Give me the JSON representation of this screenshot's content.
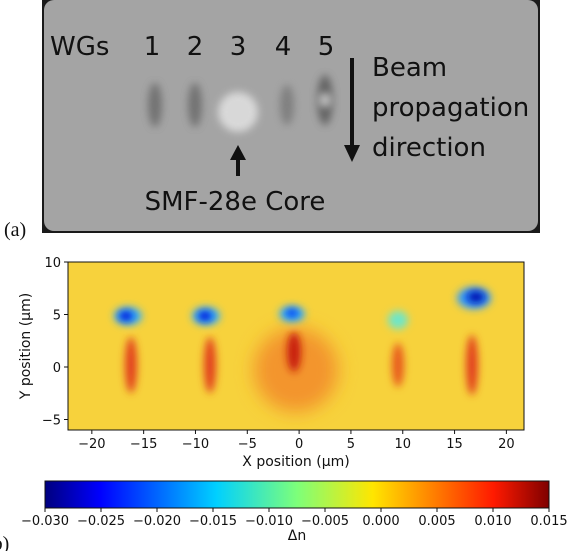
{
  "panel_a": {
    "label": "(a)",
    "wgs": "WGs",
    "wg_numbers": [
      "1",
      "2",
      "3",
      "4",
      "5"
    ],
    "arrow_text": [
      "Beam",
      "propagation",
      "direction"
    ],
    "core_label": "SMF-28e Core"
  },
  "panel_b_label": "(b)",
  "chart_data": {
    "type": "heatmap",
    "xlabel": "X position  (μm)",
    "ylabel": "Y position (μm)",
    "xlim": [
      -22.3,
      21.7
    ],
    "ylim": [
      -6,
      10
    ],
    "xticks": [
      {
        "value": -20,
        "label": "−20"
      },
      {
        "value": -15,
        "label": "−15"
      },
      {
        "value": -10,
        "label": "−10"
      },
      {
        "value": -5,
        "label": "−5"
      },
      0,
      5,
      10,
      15,
      20
    ],
    "yticks": [
      {
        "value": -5,
        "label": "−5"
      },
      0,
      5,
      10
    ],
    "colorbar": {
      "label": "Δn",
      "colormap": "jet",
      "lim": [
        -0.03,
        0.015
      ],
      "ticks": [
        {
          "value": -0.03,
          "label": "−0.030"
        },
        {
          "value": -0.025,
          "label": "−0.025"
        },
        {
          "value": -0.02,
          "label": "−0.020"
        },
        {
          "value": -0.015,
          "label": "−0.015"
        },
        {
          "value": -0.01,
          "label": "−0.010"
        },
        {
          "value": -0.005,
          "label": "−0.005"
        },
        {
          "value": 0,
          "label": "0.000"
        },
        0.005,
        {
          "value": 0.01,
          "label": "0.010"
        },
        0.015
      ]
    }
  }
}
